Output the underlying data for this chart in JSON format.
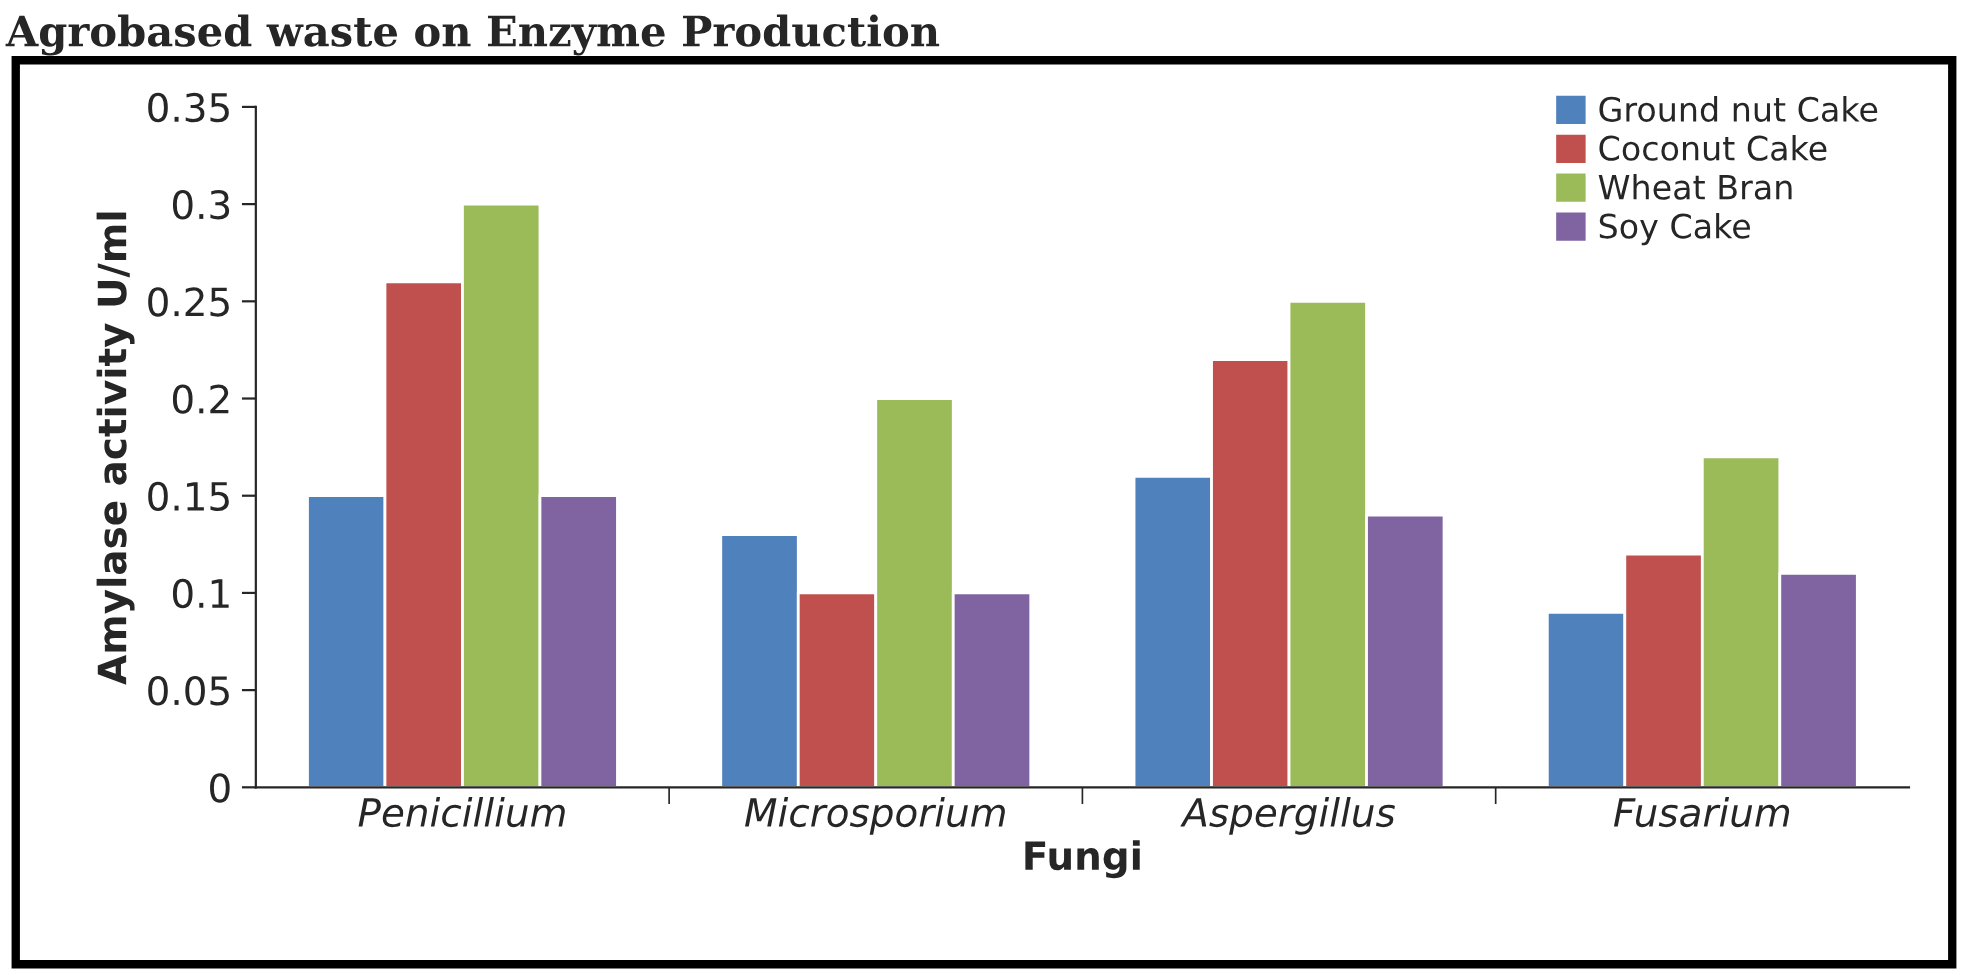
{
  "chart_data": {
    "type": "bar",
    "title": "Agrobased waste on Enzyme Production",
    "xlabel": "Fungi",
    "ylabel": "Amylase activity U/ml",
    "categories": [
      "Penicillium",
      "Microsporium",
      "Aspergillus",
      "Fusarium"
    ],
    "series": [
      {
        "name": "Ground nut Cake",
        "color": "#4f81bd",
        "values": [
          0.15,
          0.13,
          0.16,
          0.09
        ]
      },
      {
        "name": "Coconut Cake",
        "color": "#c0504d",
        "values": [
          0.26,
          0.1,
          0.22,
          0.12
        ]
      },
      {
        "name": "Wheat Bran",
        "color": "#9bbb59",
        "values": [
          0.3,
          0.2,
          0.25,
          0.17
        ]
      },
      {
        "name": "Soy Cake",
        "color": "#8064a2",
        "values": [
          0.15,
          0.1,
          0.14,
          0.11
        ]
      }
    ],
    "ylim": [
      0,
      0.35
    ],
    "yticks": [
      0,
      0.05,
      0.1,
      0.15,
      0.2,
      0.25,
      0.3,
      0.35
    ],
    "grid": false,
    "legend": "top right"
  }
}
